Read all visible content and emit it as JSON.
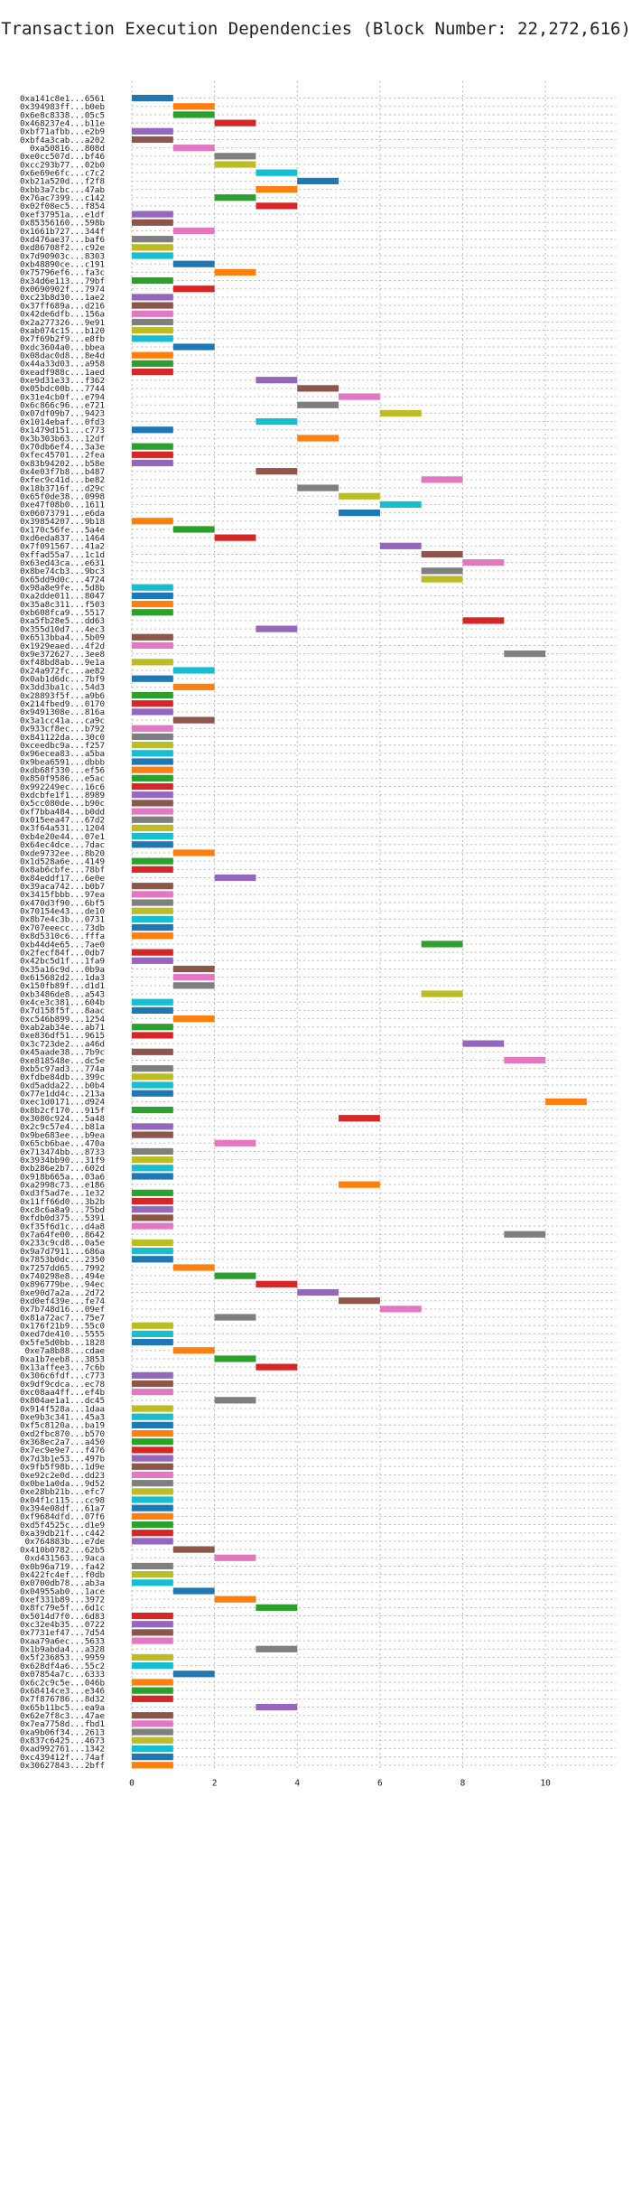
{
  "chart_data": {
    "type": "bar",
    "title": "Transaction Execution Dependencies (Block Number: 22,272,616)",
    "xlabel": "",
    "ylabel": "",
    "xlim": [
      0,
      11.7
    ],
    "x_ticks": [
      0,
      2,
      4,
      6,
      8,
      10
    ],
    "grid": true,
    "colors": [
      "#1f77b4",
      "#ff7f0e",
      "#2ca02c",
      "#d62728",
      "#9467bd",
      "#8c564b",
      "#e377c2",
      "#7f7f7f",
      "#bcbd22",
      "#17becf"
    ],
    "rows": [
      [
        "0xa141c8e1...6561",
        0,
        1
      ],
      [
        "0x394983ff...b0eb",
        1,
        1
      ],
      [
        "0x6e8c8338...05c5",
        1,
        1
      ],
      [
        "0x468237e4...b11e",
        2,
        1
      ],
      [
        "0xbf71afbb...e2b9",
        0,
        1
      ],
      [
        "0xbf4a3cab...a202",
        0,
        1
      ],
      [
        "0xa50816...808d",
        1,
        1
      ],
      [
        "0xe0cc507d...bf46",
        2,
        1
      ],
      [
        "0xcc293b77...02b0",
        2,
        1
      ],
      [
        "0x6e69e6fc...c7c2",
        3,
        1
      ],
      [
        "0xb21a520d...f2f8",
        4,
        1
      ],
      [
        "0xbb3a7cbc...47ab",
        3,
        1
      ],
      [
        "0x76ac7399...c142",
        2,
        1
      ],
      [
        "0x02f08ec5...f854",
        3,
        1
      ],
      [
        "0xef37951a...e1df",
        0,
        1
      ],
      [
        "0x85356160...598b",
        0,
        1
      ],
      [
        "0x1661b727...344f",
        1,
        1
      ],
      [
        "0xd476ae37...baf6",
        0,
        1
      ],
      [
        "0xd86708f2...c92e",
        0,
        1
      ],
      [
        "0x7d90903c...8303",
        0,
        1
      ],
      [
        "0xb48890ce...c191",
        1,
        1
      ],
      [
        "0x75796ef6...fa3c",
        2,
        1
      ],
      [
        "0x34d6e113...79bf",
        0,
        1
      ],
      [
        "0x0690902f...7974",
        1,
        1
      ],
      [
        "0xc23b8d30...1ae2",
        0,
        1
      ],
      [
        "0x37ff689a...d216",
        0,
        1
      ],
      [
        "0x42de6dfb...156a",
        0,
        1
      ],
      [
        "0x2a277326...9e91",
        0,
        1
      ],
      [
        "0xab074c15...b120",
        0,
        1
      ],
      [
        "0x7f69b2f9...e8fb",
        0,
        1
      ],
      [
        "0xdc3604a0...bbea",
        1,
        1
      ],
      [
        "0x08dac0d8...8e4d",
        0,
        1
      ],
      [
        "0x44a33d03...a958",
        0,
        1
      ],
      [
        "0xeadf988c...1aed",
        0,
        1
      ],
      [
        "0xe9d31e33...f362",
        3,
        1
      ],
      [
        "0x05bdc00b...7744",
        4,
        1
      ],
      [
        "0x31e4cb0f...e794",
        5,
        1
      ],
      [
        "0x6c866c96...e721",
        4,
        1
      ],
      [
        "0x07df09b7...9423",
        6,
        1
      ],
      [
        "0x1014ebaf...0fd3",
        3,
        1
      ],
      [
        "0x1479d151...c773",
        0,
        1
      ],
      [
        "0x3b303b63...12df",
        4,
        1
      ],
      [
        "0x70db6ef4...3a3e",
        0,
        1
      ],
      [
        "0xfec45701...2fea",
        0,
        1
      ],
      [
        "0x83b94202...b58e",
        0,
        1
      ],
      [
        "0x4e03f7b8...b487",
        3,
        1
      ],
      [
        "0xfec9c41d...be82",
        7,
        1
      ],
      [
        "0x18b3716f...d29c",
        4,
        1
      ],
      [
        "0x65f0de38...0998",
        5,
        1
      ],
      [
        "0xe47f08b0...1611",
        6,
        1
      ],
      [
        "0x06073791...e6da",
        5,
        1
      ],
      [
        "0x39854207...9b18",
        0,
        1
      ],
      [
        "0x170c56fe...5a4e",
        1,
        1
      ],
      [
        "0xd6eda837...1464",
        2,
        1
      ],
      [
        "0x7f091567...41a2",
        6,
        1
      ],
      [
        "0xffad55a7...1c1d",
        7,
        1
      ],
      [
        "0x63ed43ca...e631",
        8,
        1
      ],
      [
        "0x8be74cb3...9bc3",
        7,
        1
      ],
      [
        "0x65dd9d0c...4724",
        7,
        1
      ],
      [
        "0x98a8e9fe...5d8b",
        0,
        1
      ],
      [
        "0xa2dde011...8047",
        0,
        1
      ],
      [
        "0x35a8c311...f503",
        0,
        1
      ],
      [
        "0xb608fca9...5517",
        0,
        1
      ],
      [
        "0xa5fb28e5...dd63",
        8,
        1
      ],
      [
        "0x355d10d7...4ec3",
        3,
        1
      ],
      [
        "0x6513bba4...5b09",
        0,
        1
      ],
      [
        "0x1929eaed...4f2d",
        0,
        1
      ],
      [
        "0x9e372627...3ee8",
        9,
        1
      ],
      [
        "0xf48bd8ab...9e1a",
        0,
        1
      ],
      [
        "0x24a972fc...ae82",
        1,
        1
      ],
      [
        "0x0ab1d6dc...7bf9",
        0,
        1
      ],
      [
        "0x3dd3ba1c...54d3",
        1,
        1
      ],
      [
        "0x28893f5f...a9b6",
        0,
        1
      ],
      [
        "0x214fbed9...0170",
        0,
        1
      ],
      [
        "0x9491308e...816a",
        0,
        1
      ],
      [
        "0x3a1cc41a...ca9c",
        1,
        1
      ],
      [
        "0x933cf8ec...b792",
        0,
        1
      ],
      [
        "0x841122da...30c0",
        0,
        1
      ],
      [
        "0xceedbc9a...f257",
        0,
        1
      ],
      [
        "0x96ecea83...a5ba",
        0,
        1
      ],
      [
        "0x9bea6591...dbbb",
        0,
        1
      ],
      [
        "0xdb68f330...ef56",
        0,
        1
      ],
      [
        "0x850f9586...e5ac",
        0,
        1
      ],
      [
        "0x992249ec...16c6",
        0,
        1
      ],
      [
        "0xdcbfe1f1...8989",
        0,
        1
      ],
      [
        "0x5cc080de...b90c",
        0,
        1
      ],
      [
        "0xf7bba484...b0dd",
        0,
        1
      ],
      [
        "0x015eea47...67d2",
        0,
        1
      ],
      [
        "0x3f64a531...1204",
        0,
        1
      ],
      [
        "0xb4e20e44...07e1",
        0,
        1
      ],
      [
        "0x64ec4dce...7dac",
        0,
        1
      ],
      [
        "0xde9732ee...8b20",
        1,
        1
      ],
      [
        "0x1d528a6e...4149",
        0,
        1
      ],
      [
        "0x8ab6cbfe...78bf",
        0,
        1
      ],
      [
        "0x84eddf17...6e0e",
        2,
        1
      ],
      [
        "0x39aca742...b0b7",
        0,
        1
      ],
      [
        "0x3415fbbb...97ea",
        0,
        1
      ],
      [
        "0x470d3f90...6bf5",
        0,
        1
      ],
      [
        "0x70154e43...de10",
        0,
        1
      ],
      [
        "0x8b7e4c3b...0731",
        0,
        1
      ],
      [
        "0x707eeecc...73db",
        0,
        1
      ],
      [
        "0x8d5310c6...fffa",
        0,
        1
      ],
      [
        "0xb44d4e65...7ae0",
        7,
        1
      ],
      [
        "0x2fecf84f...0db7",
        0,
        1
      ],
      [
        "0x42bc5d1f...1fa9",
        0,
        1
      ],
      [
        "0x35a16c9d...0b9a",
        1,
        1
      ],
      [
        "0x615682d2...1da3",
        1,
        1
      ],
      [
        "0x150fb89f...d1d1",
        1,
        1
      ],
      [
        "0xb3486de8...a543",
        7,
        1
      ],
      [
        "0x4ce3c381...604b",
        0,
        1
      ],
      [
        "0x7d158f5f...8aac",
        0,
        1
      ],
      [
        "0xc546b899...1254",
        1,
        1
      ],
      [
        "0xab2ab34e...ab71",
        0,
        1
      ],
      [
        "0xe836df51...9615",
        0,
        1
      ],
      [
        "0x3c723de2...a46d",
        8,
        1
      ],
      [
        "0x45aade38...7b9c",
        0,
        1
      ],
      [
        "0xe818548e...dc5e",
        9,
        1
      ],
      [
        "0xb5c97ad3...774a",
        0,
        1
      ],
      [
        "0xfdbe84db...399c",
        0,
        1
      ],
      [
        "0xd5adda22...b0b4",
        0,
        1
      ],
      [
        "0x77e1dd4c...213a",
        0,
        1
      ],
      [
        "0xec1d0171...d924",
        10,
        1
      ],
      [
        "0x8b2cf170...915f",
        0,
        1
      ],
      [
        "0x3080c924...5a48",
        5,
        1
      ],
      [
        "0x2c9c57e4...b81a",
        0,
        1
      ],
      [
        "0x9be683ee...b9ea",
        0,
        1
      ],
      [
        "0x65cb6bae...470a",
        2,
        1
      ],
      [
        "0x713474bb...8733",
        0,
        1
      ],
      [
        "0x3934bb90...31f9",
        0,
        1
      ],
      [
        "0xb286e2b7...602d",
        0,
        1
      ],
      [
        "0x918b665a...03a6",
        0,
        1
      ],
      [
        "0xa2998c73...e186",
        5,
        1
      ],
      [
        "0xd3f5ad7e...1e32",
        0,
        1
      ],
      [
        "0x11ff66d0...3b2b",
        0,
        1
      ],
      [
        "0xc8c6a8a9...75bd",
        0,
        1
      ],
      [
        "0xfdb0d375...5391",
        0,
        1
      ],
      [
        "0xf35f6d1c...d4a8",
        0,
        1
      ],
      [
        "0x7a64fe00...8642",
        9,
        1
      ],
      [
        "0x233c9cd8...0a5e",
        0,
        1
      ],
      [
        "0x9a7d7911...686a",
        0,
        1
      ],
      [
        "0x7853b0dc...2350",
        0,
        1
      ],
      [
        "0x7257dd65...7992",
        1,
        1
      ],
      [
        "0x740298e8...494e",
        2,
        1
      ],
      [
        "0x896779be...94ec",
        3,
        1
      ],
      [
        "0xe90d7a2a...2d72",
        4,
        1
      ],
      [
        "0xd0ef439e...fe74",
        5,
        1
      ],
      [
        "0x7b748d16...09ef",
        6,
        1
      ],
      [
        "0x81a72ac7...75e7",
        2,
        1
      ],
      [
        "0x176f21b9...55c0",
        0,
        1
      ],
      [
        "0xed7de410...5555",
        0,
        1
      ],
      [
        "0x5fe5d0bb...1828",
        0,
        1
      ],
      [
        "0xe7a8b88...cdae",
        1,
        1
      ],
      [
        "0xa1b7eeb8...3853",
        2,
        1
      ],
      [
        "0x13affee3...7c6b",
        3,
        1
      ],
      [
        "0x306c6fdf...c773",
        0,
        1
      ],
      [
        "0x9df9cdca...ec78",
        0,
        1
      ],
      [
        "0xc08aa4ff...ef4b",
        0,
        1
      ],
      [
        "0x804ae1a1...dc45",
        2,
        1
      ],
      [
        "0x914f528a...1daa",
        0,
        1
      ],
      [
        "0xe9b3c341...45a3",
        0,
        1
      ],
      [
        "0xf5c8120a...ba19",
        0,
        1
      ],
      [
        "0xd2fbc870...b570",
        0,
        1
      ],
      [
        "0x368ec2a7...a450",
        0,
        1
      ],
      [
        "0x7ec9e9e7...f476",
        0,
        1
      ],
      [
        "0x7d3b1e53...497b",
        0,
        1
      ],
      [
        "0x9fb5f98b...1d9e",
        0,
        1
      ],
      [
        "0xe92c2e0d...dd23",
        0,
        1
      ],
      [
        "0x0be1a0da...9d52",
        0,
        1
      ],
      [
        "0xe28bb21b...efc7",
        0,
        1
      ],
      [
        "0x04f1c115...cc98",
        0,
        1
      ],
      [
        "0x394e08df...61a7",
        0,
        1
      ],
      [
        "0xf9684dfd...07f6",
        0,
        1
      ],
      [
        "0xd5f4525c...d1e9",
        0,
        1
      ],
      [
        "0xa39db21f...c442",
        0,
        1
      ],
      [
        "0x764883b...e7de",
        0,
        1
      ],
      [
        "0x410b0782...62b5",
        1,
        1
      ],
      [
        "0xd431563...9aca",
        2,
        1
      ],
      [
        "0x0b96a719...fa42",
        0,
        1
      ],
      [
        "0x422fc4ef...f0db",
        0,
        1
      ],
      [
        "0x0700db78...ab3a",
        0,
        1
      ],
      [
        "0x04955ab0...1ace",
        1,
        1
      ],
      [
        "0xef331b89...3972",
        2,
        1
      ],
      [
        "0x8fc79e5f...6d1c",
        3,
        1
      ],
      [
        "0x5014d7f0...6d83",
        0,
        1
      ],
      [
        "0xc32e4b35...0722",
        0,
        1
      ],
      [
        "0x7731ef47...7d54",
        0,
        1
      ],
      [
        "0xaa79a6ec...5633",
        0,
        1
      ],
      [
        "0x1b9abda4...a328",
        3,
        1
      ],
      [
        "0x5f236853...9959",
        0,
        1
      ],
      [
        "0x628df4a6...55c2",
        0,
        1
      ],
      [
        "0x07854a7c...6333",
        1,
        1
      ],
      [
        "0x6c2c9c5e...046b",
        0,
        1
      ],
      [
        "0x68414ce3...e346",
        0,
        1
      ],
      [
        "0x7f876786...8d32",
        0,
        1
      ],
      [
        "0x65b11bc5...ea9a",
        3,
        1
      ],
      [
        "0x62e7f8c3...47ae",
        0,
        1
      ],
      [
        "0x7ea7758d...fbd1",
        0,
        1
      ],
      [
        "0xa9b06f34...2613",
        0,
        1
      ],
      [
        "0x837c6425...4673",
        0,
        1
      ],
      [
        "0xad992761...1342",
        0,
        1
      ],
      [
        "0xc439412f...74af",
        0,
        1
      ],
      [
        "0x30627843...2bff",
        0,
        1
      ]
    ]
  }
}
